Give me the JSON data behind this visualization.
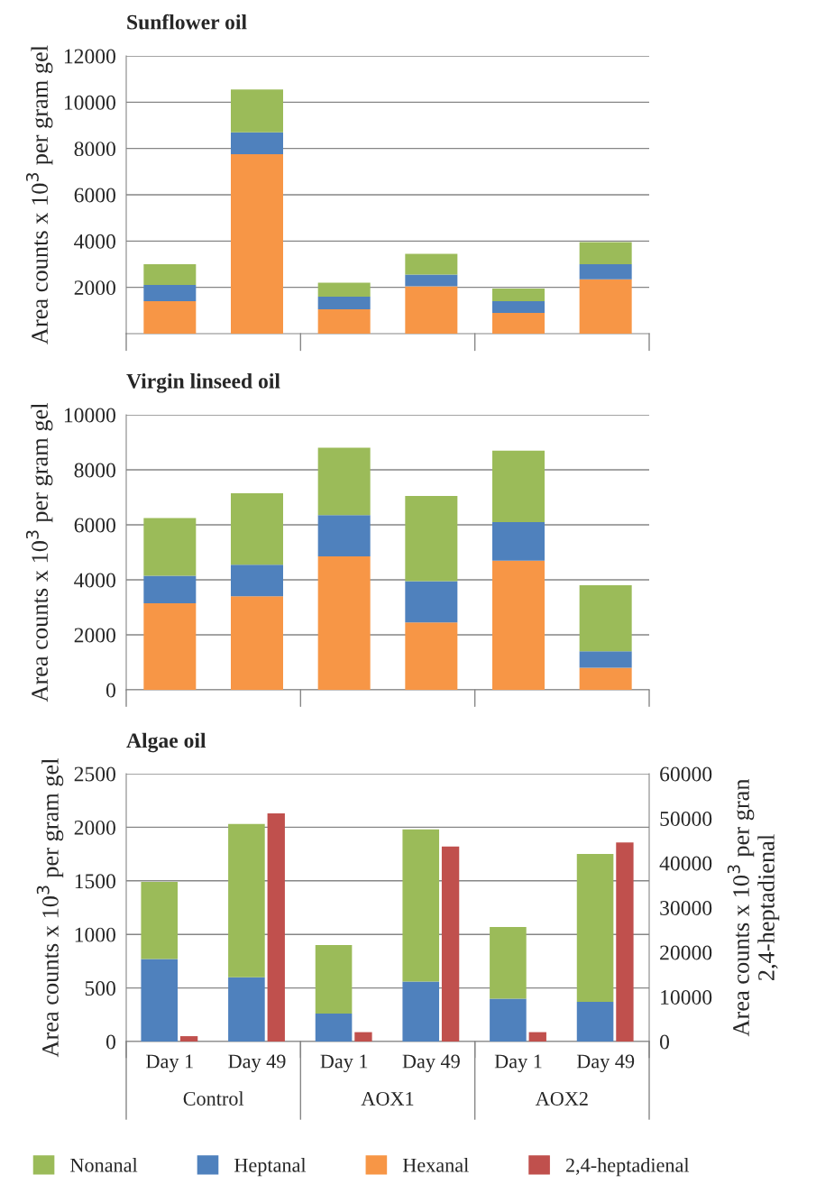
{
  "chart_data": [
    {
      "type": "bar",
      "title": "Sunflower oil",
      "ylabel": "Area counts x 10$^{3}$ per gram gel",
      "categories": [
        null,
        null,
        null,
        null,
        null,
        null
      ],
      "stacked": true,
      "ylim": [
        0,
        12000
      ],
      "yticks": [
        2000,
        4000,
        6000,
        8000,
        10000,
        12000
      ],
      "grid": "y",
      "legend": false,
      "series": [
        {
          "color": "#f79646",
          "values": [
            1400,
            7750,
            1050,
            2050,
            900,
            2350
          ]
        },
        {
          "color": "#4f81bd",
          "values": [
            700,
            950,
            550,
            500,
            500,
            650
          ]
        },
        {
          "color": "#9bbb59",
          "values": [
            900,
            1850,
            600,
            900,
            550,
            950
          ]
        }
      ]
    },
    {
      "type": "bar",
      "title": "Virgin linseed oil",
      "ylabel": "Area counts x 10$^{3}$ per gram gel",
      "categories": [
        null,
        null,
        null,
        null,
        null,
        null
      ],
      "stacked": true,
      "ylim": [
        0,
        10000
      ],
      "yticks": [
        0,
        2000,
        4000,
        6000,
        8000,
        10000
      ],
      "grid": "y",
      "legend": false,
      "series": [
        {
          "color": "#f79646",
          "values": [
            3150,
            3400,
            4850,
            2450,
            4700,
            800
          ]
        },
        {
          "color": "#4f81bd",
          "values": [
            1000,
            1150,
            1500,
            1500,
            1400,
            600
          ]
        },
        {
          "color": "#9bbb59",
          "values": [
            2100,
            2600,
            2450,
            3100,
            2600,
            2400
          ]
        }
      ]
    },
    {
      "type": "bar",
      "title": "Algae oil",
      "ylabel": "Area counts x 10$^{3}$ per gram gel",
      "y2label": "Area counts x 10$^{3}$ per gran\n2,4-heptadienal",
      "categories": [
        "Day 1",
        "Day 49",
        "Day 1",
        "Day 49",
        "Day 1",
        "Day 49"
      ],
      "stacked": true,
      "ylim": [
        0,
        2500
      ],
      "yticks": [
        0,
        500,
        1000,
        1500,
        2000,
        2500
      ],
      "y2lim": [
        0,
        60000
      ],
      "y2ticks": [
        0,
        10000,
        20000,
        30000,
        40000,
        50000,
        60000
      ],
      "grid": "y",
      "legend": "bottom",
      "annotations": [
        "Control",
        "AOX1",
        "AOX2"
      ],
      "series": [
        {
          "name": "Hexanal",
          "color": "#f79646",
          "values": [
            null,
            null,
            null,
            null,
            null,
            null
          ]
        },
        {
          "name": "Heptanal",
          "color": "#4f81bd",
          "values": [
            770,
            600,
            260,
            560,
            400,
            370
          ]
        },
        {
          "name": "Nonanal",
          "color": "#9bbb59",
          "values": [
            720,
            1430,
            640,
            1420,
            670,
            1380
          ]
        },
        {
          "name": "2,4-heptadienal",
          "color": "#c0504d",
          "axis": "y2",
          "values": [
            1200,
            51100,
            2100,
            43700,
            2100,
            44600
          ]
        }
      ]
    }
  ]
}
